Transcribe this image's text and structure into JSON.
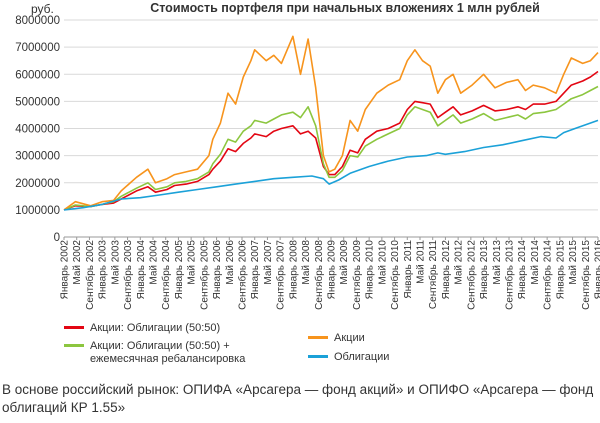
{
  "chart_data": {
    "type": "line",
    "title": "Стоимость портфеля при начальных вложениях 1 млн рублей",
    "ylabel": "руб.",
    "ylim": [
      0,
      8000000
    ],
    "yticks": [
      0,
      1000000,
      2000000,
      3000000,
      4000000,
      5000000,
      6000000,
      7000000,
      8000000
    ],
    "ytick_labels": [
      "0",
      "1000000",
      "2000000",
      "3000000",
      "4000000",
      "5000000",
      "6000000",
      "7000000",
      "8000000"
    ],
    "grid": true,
    "x_range": [
      2002.0,
      2016.0
    ],
    "xtick_labels": [
      "Январь 2002",
      "Май 2002",
      "Сентябрь 2002",
      "Январь 2003",
      "Май 2003",
      "Сентябрь 2003",
      "Январь 2004",
      "Май 2004",
      "Сентябрь 2004",
      "Январь 2005",
      "Май 2005",
      "Сентябрь 2005",
      "Январь 2006",
      "Май 2006",
      "Сентябрь 2006",
      "Январь 2007",
      "Май 2007",
      "Сентябрь 2007",
      "Январь 2008",
      "Май 2008",
      "Сентябрь 2008",
      "Январь 2009",
      "Май 2009",
      "Сентябрь 2009",
      "Январь 2010",
      "Май 2010",
      "Сентябрь 2010",
      "Январь 2011",
      "Май 2011",
      "Сентябрь 2011",
      "Январь 2012",
      "Май 2012",
      "Сентябрь 2012",
      "Январь 2013",
      "Май 2013",
      "Сентябрь 2013",
      "Январь 2014",
      "Май 2014",
      "Сентябрь 2014",
      "Январь 2015",
      "Май 2015",
      "Сентябрь 2015",
      "Январь 2016"
    ],
    "series": [
      {
        "name": "Акции: Облигации (50:50)",
        "color": "#e30613",
        "points": [
          [
            2002.0,
            1000000
          ],
          [
            2002.3,
            1150000
          ],
          [
            2002.7,
            1120000
          ],
          [
            2003.0,
            1200000
          ],
          [
            2003.3,
            1250000
          ],
          [
            2003.5,
            1400000
          ],
          [
            2003.9,
            1700000
          ],
          [
            2004.2,
            1850000
          ],
          [
            2004.4,
            1650000
          ],
          [
            2004.7,
            1750000
          ],
          [
            2004.9,
            1900000
          ],
          [
            2005.2,
            1950000
          ],
          [
            2005.5,
            2050000
          ],
          [
            2005.8,
            2300000
          ],
          [
            2005.9,
            2500000
          ],
          [
            2006.1,
            2800000
          ],
          [
            2006.3,
            3250000
          ],
          [
            2006.5,
            3150000
          ],
          [
            2006.7,
            3450000
          ],
          [
            2006.9,
            3650000
          ],
          [
            2007.0,
            3800000
          ],
          [
            2007.3,
            3700000
          ],
          [
            2007.5,
            3900000
          ],
          [
            2007.7,
            4000000
          ],
          [
            2008.0,
            4100000
          ],
          [
            2008.2,
            3800000
          ],
          [
            2008.4,
            3900000
          ],
          [
            2008.6,
            3650000
          ],
          [
            2008.8,
            2600000
          ],
          [
            2008.95,
            2300000
          ],
          [
            2009.1,
            2300000
          ],
          [
            2009.3,
            2600000
          ],
          [
            2009.5,
            3200000
          ],
          [
            2009.7,
            3100000
          ],
          [
            2009.9,
            3600000
          ],
          [
            2010.2,
            3900000
          ],
          [
            2010.5,
            4000000
          ],
          [
            2010.8,
            4200000
          ],
          [
            2011.0,
            4700000
          ],
          [
            2011.2,
            5000000
          ],
          [
            2011.4,
            4950000
          ],
          [
            2011.6,
            4900000
          ],
          [
            2011.8,
            4400000
          ],
          [
            2012.0,
            4600000
          ],
          [
            2012.2,
            4800000
          ],
          [
            2012.4,
            4500000
          ],
          [
            2012.7,
            4650000
          ],
          [
            2013.0,
            4850000
          ],
          [
            2013.3,
            4650000
          ],
          [
            2013.6,
            4700000
          ],
          [
            2013.9,
            4800000
          ],
          [
            2014.1,
            4700000
          ],
          [
            2014.3,
            4900000
          ],
          [
            2014.6,
            4900000
          ],
          [
            2014.9,
            5000000
          ],
          [
            2015.1,
            5300000
          ],
          [
            2015.3,
            5600000
          ],
          [
            2015.6,
            5750000
          ],
          [
            2015.8,
            5900000
          ],
          [
            2016.0,
            6100000
          ]
        ]
      },
      {
        "name": "Акции: Облигации (50:50) + ежемесячная ребалансировка",
        "color": "#8cc63f",
        "points": [
          [
            2002.0,
            1000000
          ],
          [
            2002.3,
            1180000
          ],
          [
            2002.7,
            1120000
          ],
          [
            2003.0,
            1200000
          ],
          [
            2003.3,
            1300000
          ],
          [
            2003.5,
            1500000
          ],
          [
            2003.9,
            1800000
          ],
          [
            2004.2,
            2000000
          ],
          [
            2004.4,
            1750000
          ],
          [
            2004.7,
            1850000
          ],
          [
            2004.9,
            2000000
          ],
          [
            2005.2,
            2050000
          ],
          [
            2005.5,
            2150000
          ],
          [
            2005.8,
            2400000
          ],
          [
            2005.9,
            2700000
          ],
          [
            2006.1,
            3050000
          ],
          [
            2006.3,
            3600000
          ],
          [
            2006.5,
            3500000
          ],
          [
            2006.7,
            3900000
          ],
          [
            2006.9,
            4100000
          ],
          [
            2007.0,
            4300000
          ],
          [
            2007.3,
            4200000
          ],
          [
            2007.5,
            4350000
          ],
          [
            2007.7,
            4500000
          ],
          [
            2008.0,
            4600000
          ],
          [
            2008.2,
            4400000
          ],
          [
            2008.4,
            4800000
          ],
          [
            2008.6,
            4100000
          ],
          [
            2008.8,
            2700000
          ],
          [
            2008.95,
            2200000
          ],
          [
            2009.1,
            2200000
          ],
          [
            2009.3,
            2450000
          ],
          [
            2009.5,
            3000000
          ],
          [
            2009.7,
            2950000
          ],
          [
            2009.9,
            3350000
          ],
          [
            2010.2,
            3600000
          ],
          [
            2010.5,
            3800000
          ],
          [
            2010.8,
            4000000
          ],
          [
            2011.0,
            4500000
          ],
          [
            2011.2,
            4800000
          ],
          [
            2011.4,
            4700000
          ],
          [
            2011.6,
            4600000
          ],
          [
            2011.8,
            4100000
          ],
          [
            2012.0,
            4300000
          ],
          [
            2012.2,
            4500000
          ],
          [
            2012.4,
            4200000
          ],
          [
            2012.7,
            4350000
          ],
          [
            2013.0,
            4550000
          ],
          [
            2013.3,
            4300000
          ],
          [
            2013.6,
            4400000
          ],
          [
            2013.9,
            4500000
          ],
          [
            2014.1,
            4350000
          ],
          [
            2014.3,
            4550000
          ],
          [
            2014.6,
            4600000
          ],
          [
            2014.9,
            4700000
          ],
          [
            2015.1,
            4900000
          ],
          [
            2015.3,
            5100000
          ],
          [
            2015.6,
            5250000
          ],
          [
            2015.8,
            5400000
          ],
          [
            2016.0,
            5550000
          ]
        ]
      },
      {
        "name": "Акции",
        "color": "#f7941d",
        "points": [
          [
            2002.0,
            1000000
          ],
          [
            2002.3,
            1300000
          ],
          [
            2002.7,
            1150000
          ],
          [
            2003.0,
            1300000
          ],
          [
            2003.3,
            1350000
          ],
          [
            2003.5,
            1700000
          ],
          [
            2003.9,
            2200000
          ],
          [
            2004.2,
            2500000
          ],
          [
            2004.4,
            2000000
          ],
          [
            2004.7,
            2150000
          ],
          [
            2004.9,
            2300000
          ],
          [
            2005.2,
            2400000
          ],
          [
            2005.5,
            2500000
          ],
          [
            2005.8,
            3000000
          ],
          [
            2005.9,
            3600000
          ],
          [
            2006.1,
            4200000
          ],
          [
            2006.3,
            5300000
          ],
          [
            2006.5,
            4900000
          ],
          [
            2006.7,
            5900000
          ],
          [
            2006.9,
            6500000
          ],
          [
            2007.0,
            6900000
          ],
          [
            2007.3,
            6500000
          ],
          [
            2007.5,
            6700000
          ],
          [
            2007.7,
            6400000
          ],
          [
            2008.0,
            7400000
          ],
          [
            2008.2,
            6000000
          ],
          [
            2008.4,
            7300000
          ],
          [
            2008.6,
            5500000
          ],
          [
            2008.8,
            3000000
          ],
          [
            2008.95,
            2400000
          ],
          [
            2009.1,
            2500000
          ],
          [
            2009.3,
            3000000
          ],
          [
            2009.5,
            4300000
          ],
          [
            2009.7,
            3900000
          ],
          [
            2009.9,
            4700000
          ],
          [
            2010.2,
            5300000
          ],
          [
            2010.5,
            5600000
          ],
          [
            2010.8,
            5800000
          ],
          [
            2011.0,
            6500000
          ],
          [
            2011.2,
            6900000
          ],
          [
            2011.4,
            6500000
          ],
          [
            2011.6,
            6300000
          ],
          [
            2011.8,
            5300000
          ],
          [
            2012.0,
            5800000
          ],
          [
            2012.2,
            6000000
          ],
          [
            2012.4,
            5300000
          ],
          [
            2012.7,
            5600000
          ],
          [
            2013.0,
            6000000
          ],
          [
            2013.3,
            5500000
          ],
          [
            2013.6,
            5700000
          ],
          [
            2013.9,
            5800000
          ],
          [
            2014.1,
            5400000
          ],
          [
            2014.3,
            5600000
          ],
          [
            2014.6,
            5500000
          ],
          [
            2014.9,
            5300000
          ],
          [
            2015.1,
            6000000
          ],
          [
            2015.3,
            6600000
          ],
          [
            2015.6,
            6400000
          ],
          [
            2015.8,
            6500000
          ],
          [
            2016.0,
            6800000
          ]
        ]
      },
      {
        "name": "Облигации",
        "color": "#1ba1d8",
        "points": [
          [
            2002.0,
            1000000
          ],
          [
            2002.5,
            1080000
          ],
          [
            2003.0,
            1200000
          ],
          [
            2003.5,
            1400000
          ],
          [
            2004.0,
            1450000
          ],
          [
            2004.5,
            1550000
          ],
          [
            2005.0,
            1650000
          ],
          [
            2005.5,
            1750000
          ],
          [
            2006.0,
            1850000
          ],
          [
            2006.5,
            1950000
          ],
          [
            2007.0,
            2050000
          ],
          [
            2007.5,
            2150000
          ],
          [
            2008.0,
            2200000
          ],
          [
            2008.5,
            2250000
          ],
          [
            2008.8,
            2150000
          ],
          [
            2008.95,
            1950000
          ],
          [
            2009.2,
            2100000
          ],
          [
            2009.5,
            2350000
          ],
          [
            2010.0,
            2600000
          ],
          [
            2010.5,
            2800000
          ],
          [
            2011.0,
            2950000
          ],
          [
            2011.5,
            3000000
          ],
          [
            2011.8,
            3100000
          ],
          [
            2012.0,
            3050000
          ],
          [
            2012.5,
            3150000
          ],
          [
            2013.0,
            3300000
          ],
          [
            2013.5,
            3400000
          ],
          [
            2014.0,
            3550000
          ],
          [
            2014.5,
            3700000
          ],
          [
            2014.9,
            3650000
          ],
          [
            2015.1,
            3850000
          ],
          [
            2015.5,
            4050000
          ],
          [
            2016.0,
            4300000
          ]
        ]
      }
    ]
  },
  "legend": {
    "item1": "Акции: Облигации (50:50)",
    "item2": "Акции: Облигации (50:50) +\nежемесячная ребалансировка",
    "item3": "Акции",
    "item4": "Облигации"
  },
  "footnote": "В основе российский рынок: ОПИФА «Арсагера — фонд акций» и ОПИФО «Арсагера — фонд облигаций КР 1.55»"
}
